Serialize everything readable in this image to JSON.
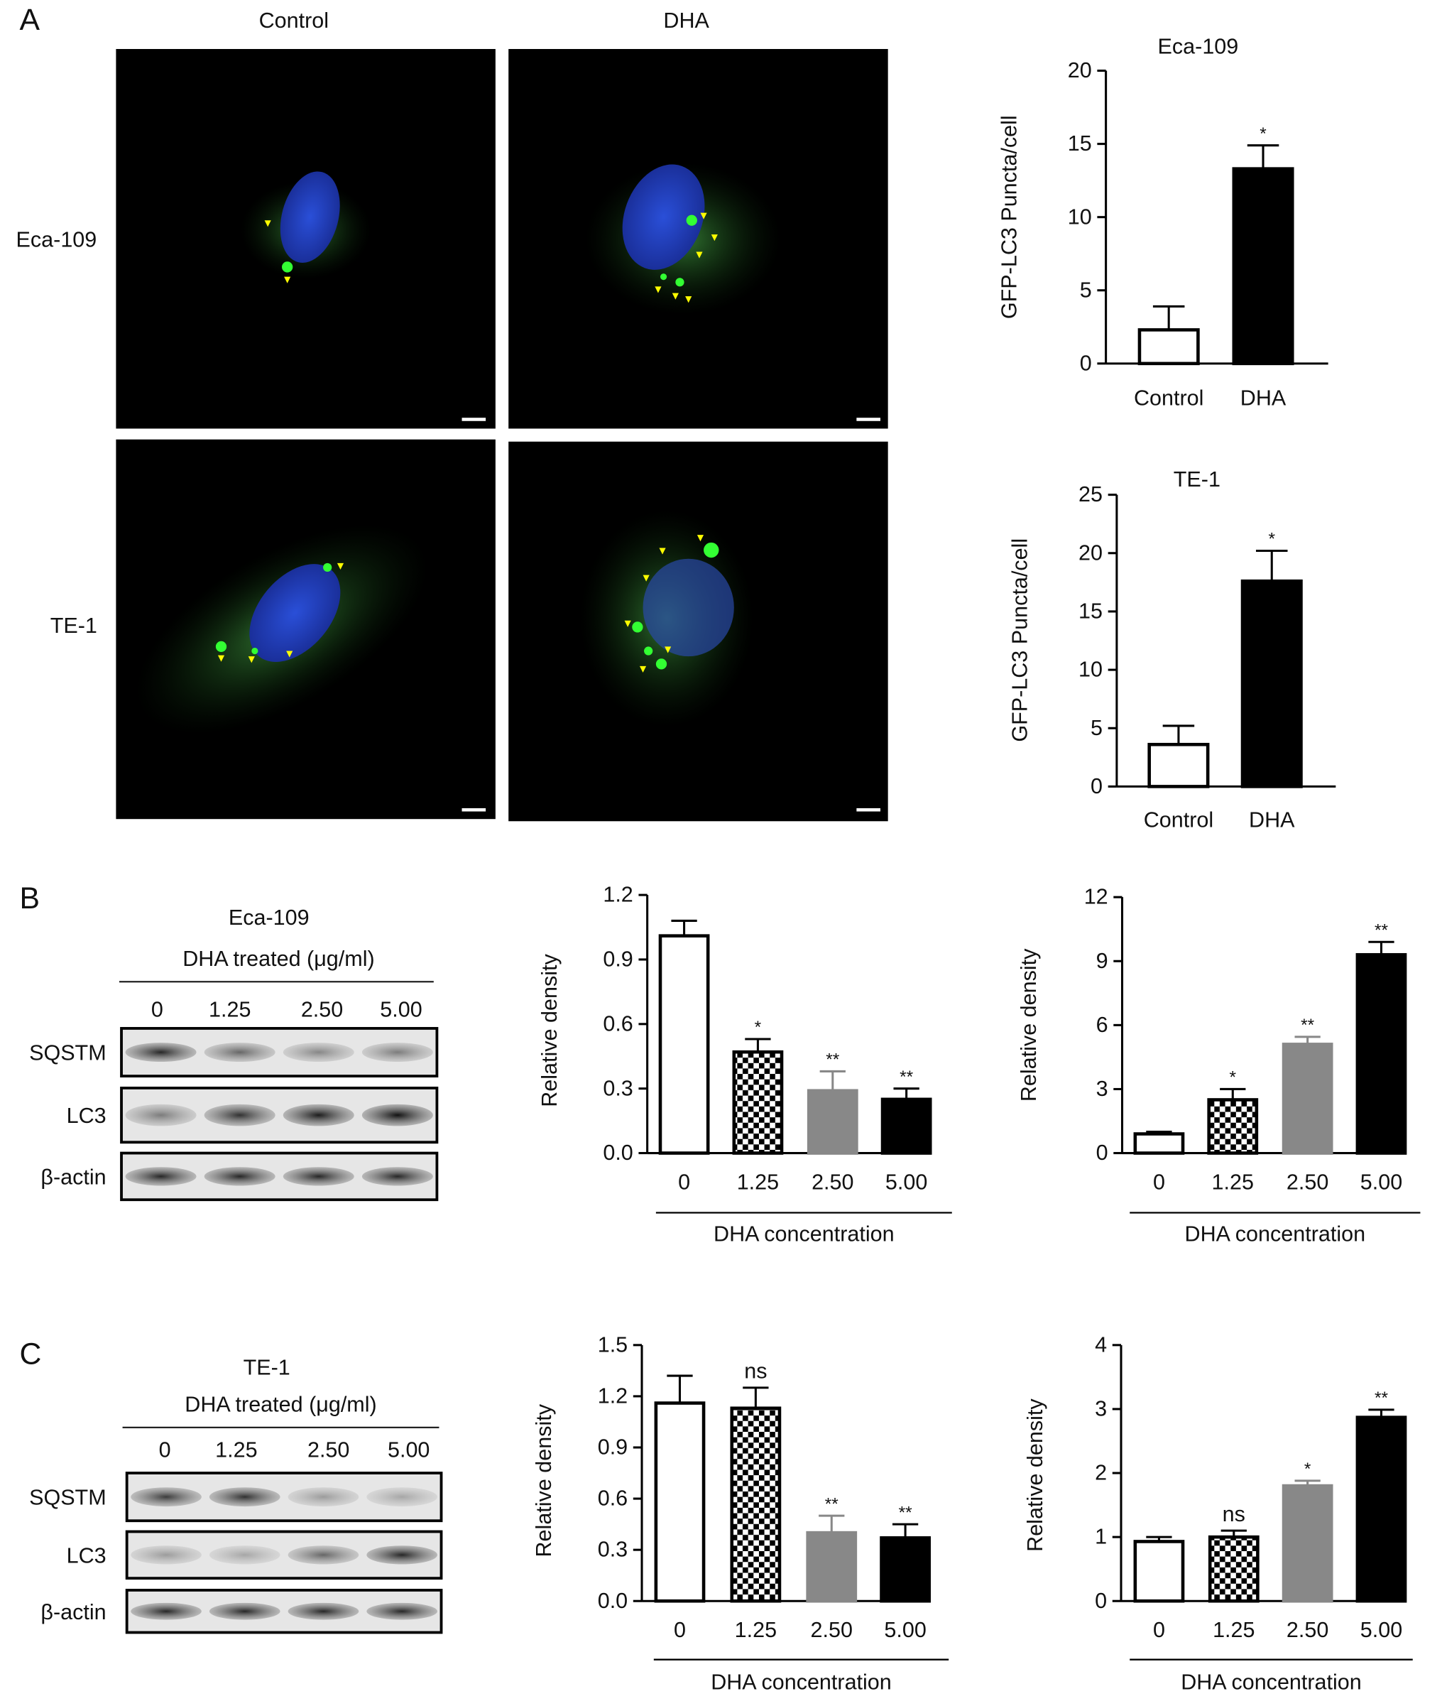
{
  "panel_labels": [
    "A",
    "B",
    "C"
  ],
  "microscopy": {
    "columns": [
      "Control",
      "DHA"
    ],
    "rows": [
      "Eca-109",
      "TE-1"
    ]
  },
  "blots": [
    {
      "cell_line": "Eca-109",
      "treatment": "DHA treated (μg/ml)",
      "lanes": [
        "0",
        "1.25",
        "2.50",
        "5.00"
      ],
      "proteins": [
        "SQSTM",
        "LC3",
        "β-actin"
      ]
    },
    {
      "cell_line": "TE-1",
      "treatment": "DHA treated (μg/ml)",
      "lanes": [
        "0",
        "1.25",
        "2.50",
        "5.00"
      ],
      "proteins": [
        "SQSTM",
        "LC3",
        "β-actin"
      ]
    }
  ],
  "chart_data": [
    {
      "type": "bar",
      "title": "Eca-109",
      "y_label": "GFP-LC3 Puncta/cell",
      "categories": [
        "Control",
        "DHA"
      ],
      "values": [
        2.3,
        13.3
      ],
      "errors": [
        1.6,
        1.6
      ],
      "significance": [
        null,
        "*"
      ],
      "colors": [
        "#ffffff",
        "#000000"
      ],
      "ylim": [
        0,
        20
      ],
      "yticks": [
        0,
        5,
        10,
        15,
        20
      ]
    },
    {
      "type": "bar",
      "title": "TE-1",
      "y_label": "GFP-LC3 Puncta/cell",
      "categories": [
        "Control",
        "DHA"
      ],
      "values": [
        3.6,
        17.6
      ],
      "errors": [
        1.6,
        2.6
      ],
      "significance": [
        null,
        "*"
      ],
      "colors": [
        "#ffffff",
        "#000000"
      ],
      "ylim": [
        0,
        25
      ],
      "yticks": [
        0,
        5,
        10,
        15,
        20,
        25
      ]
    },
    {
      "type": "bar",
      "y_label": "Relative density",
      "x_label": "DHA concentration",
      "categories": [
        "0",
        "1.25",
        "2.50",
        "5.00"
      ],
      "values": [
        1.01,
        0.47,
        0.29,
        0.25
      ],
      "errors": [
        0.07,
        0.06,
        0.09,
        0.05
      ],
      "significance": [
        null,
        "*",
        "**",
        "**"
      ],
      "colors": [
        "#ffffff",
        "checkerboard",
        "#888888",
        "#000000"
      ],
      "ylim": [
        0,
        1.2
      ],
      "yticks": [
        {
          "value": 0,
          "label": "0.0"
        },
        0.3,
        0.6,
        0.9,
        1.2
      ]
    },
    {
      "type": "bar",
      "y_label": "Relative density",
      "x_label": "DHA concentration",
      "categories": [
        "0",
        "1.25",
        "2.50",
        "5.00"
      ],
      "values": [
        0.9,
        2.5,
        5.1,
        9.3
      ],
      "errors": [
        0.1,
        0.5,
        0.35,
        0.6
      ],
      "significance": [
        null,
        "*",
        "**",
        "**"
      ],
      "colors": [
        "#ffffff",
        "checkerboard",
        "#888888",
        "#000000"
      ],
      "ylim": [
        0,
        12
      ],
      "yticks": [
        0,
        3,
        6,
        9,
        12
      ]
    },
    {
      "type": "bar",
      "y_label": "Relative density",
      "x_label": "DHA concentration",
      "categories": [
        "0",
        "1.25",
        "2.50",
        "5.00"
      ],
      "values": [
        1.16,
        1.13,
        0.4,
        0.37
      ],
      "errors": [
        0.16,
        0.12,
        0.1,
        0.08
      ],
      "significance": [
        null,
        "ns",
        "**",
        "**"
      ],
      "colors": [
        "#ffffff",
        "checkerboard",
        "#888888",
        "#000000"
      ],
      "ylim": [
        0,
        1.5
      ],
      "yticks": [
        {
          "value": 0,
          "label": "0.0"
        },
        0.3,
        0.6,
        0.9,
        1.2,
        1.5
      ]
    },
    {
      "type": "bar",
      "y_label": "Relative density",
      "x_label": "DHA concentration",
      "categories": [
        "0",
        "1.25",
        "2.50",
        "5.00"
      ],
      "values": [
        0.93,
        1.0,
        1.8,
        2.87
      ],
      "errors": [
        0.07,
        0.1,
        0.08,
        0.12
      ],
      "significance": [
        null,
        "ns",
        "*",
        "**"
      ],
      "colors": [
        "#ffffff",
        "checkerboard",
        "#888888",
        "#000000"
      ],
      "ylim": [
        0,
        4
      ],
      "yticks": [
        0,
        1,
        2,
        3,
        4
      ]
    }
  ]
}
